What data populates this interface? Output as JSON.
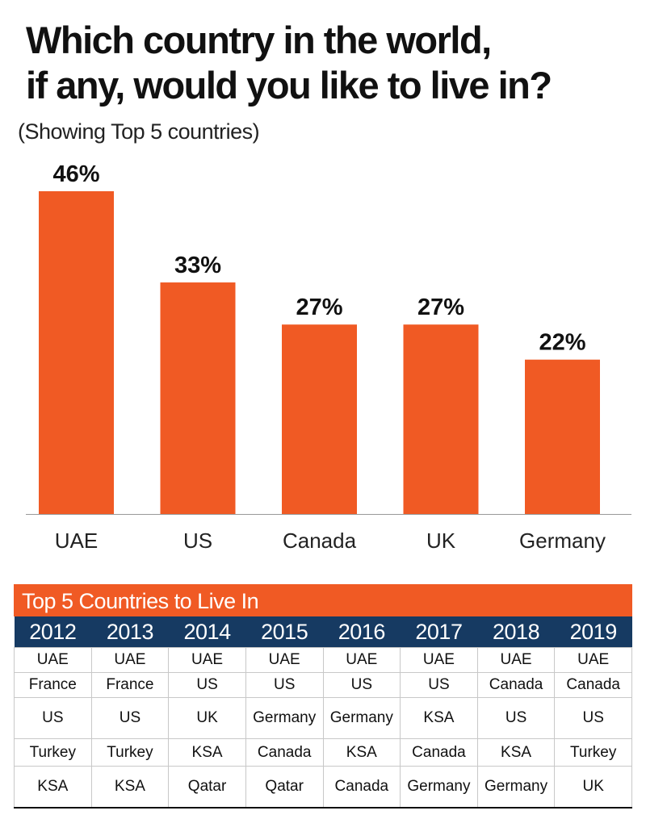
{
  "title_line1": "Which country in the world,",
  "title_line2": "if any, would you like to live in?",
  "subtitle": "(Showing Top 5 countries)",
  "colors": {
    "bar": "#f05a24",
    "table_header": "#f05a24",
    "year_row": "#163a62",
    "axis": "#999999"
  },
  "chart_data": {
    "type": "bar",
    "categories": [
      "UAE",
      "US",
      "Canada",
      "UK",
      "Germany"
    ],
    "values": [
      46,
      33,
      27,
      27,
      22
    ],
    "value_labels": [
      "46%",
      "33%",
      "27%",
      "27%",
      "22%"
    ],
    "unit": "%",
    "title": "Which country in the world, if any, would you like to live in?",
    "subtitle": "(Showing Top 5 countries)",
    "xlabel": "",
    "ylabel": "",
    "ylim": [
      0,
      46
    ],
    "grid": false,
    "legend": "none"
  },
  "table": {
    "title": "Top 5 Countries to Live In",
    "years": [
      "2012",
      "2013",
      "2014",
      "2015",
      "2016",
      "2017",
      "2018",
      "2019"
    ],
    "rows": [
      [
        "UAE",
        "UAE",
        "UAE",
        "UAE",
        "UAE",
        "UAE",
        "UAE",
        "UAE"
      ],
      [
        "France",
        "France",
        "US",
        "US",
        "US",
        "US",
        "Canada",
        "Canada"
      ],
      [
        "US",
        "US",
        "UK",
        "Germany",
        "Germany",
        "KSA",
        "US",
        "US"
      ],
      [
        "Turkey",
        "Turkey",
        "KSA",
        "Canada",
        "KSA",
        "Canada",
        "KSA",
        "Turkey"
      ],
      [
        "KSA",
        "KSA",
        "Qatar",
        "Qatar",
        "Canada",
        "Germany",
        "Germany",
        "UK"
      ]
    ]
  }
}
